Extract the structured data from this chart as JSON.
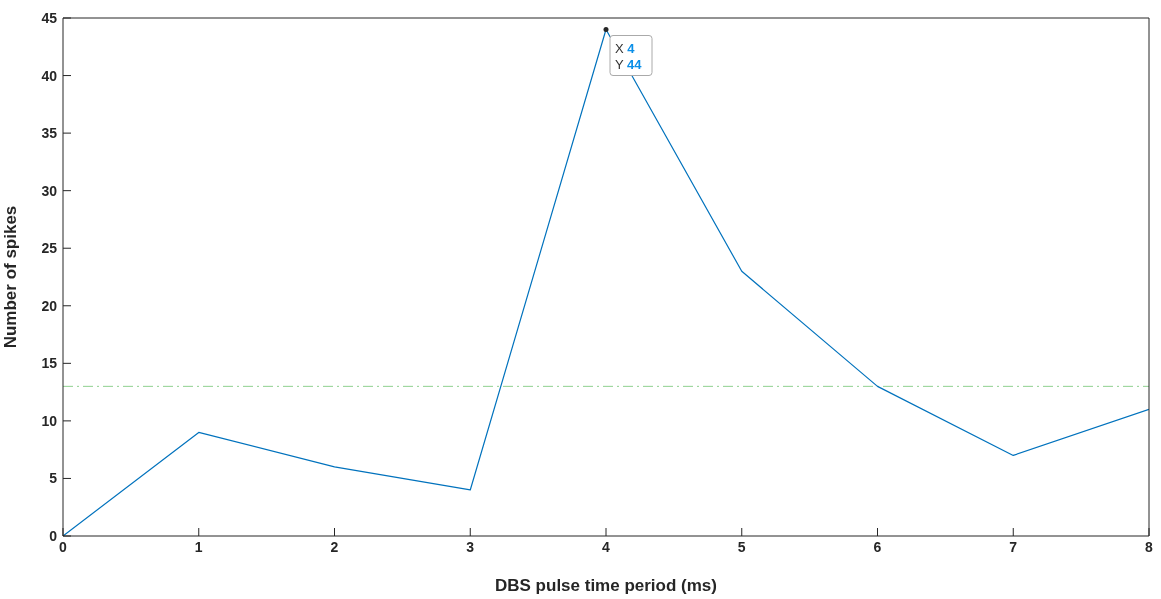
{
  "chart_data": {
    "type": "line",
    "xlabel": "DBS pulse time period (ms)",
    "ylabel": "Number of spikes",
    "x": [
      0,
      1,
      2,
      3,
      4,
      5,
      6,
      7,
      8
    ],
    "series": [
      {
        "color": "#0072bd",
        "values": [
          0,
          9,
          6,
          4,
          44,
          23,
          13,
          7,
          11
        ]
      }
    ],
    "xlim": [
      0,
      8
    ],
    "xticks": [
      0,
      1,
      2,
      3,
      4,
      5,
      6,
      7,
      8
    ],
    "ylim": [
      0,
      45
    ],
    "yticks": [
      0,
      5,
      10,
      15,
      20,
      25,
      30,
      35,
      40,
      45
    ],
    "legend": false,
    "marker": "none",
    "line_style": "solid",
    "ref_lines": [
      {
        "axis": "y",
        "value": 13,
        "color": "#8fd08f",
        "line_style": "dashdot"
      }
    ],
    "annotations": [
      {
        "text": "X 4",
        "x": 4,
        "y": 44
      },
      {
        "text": "Y 44",
        "x": 4,
        "y": 44
      }
    ]
  }
}
